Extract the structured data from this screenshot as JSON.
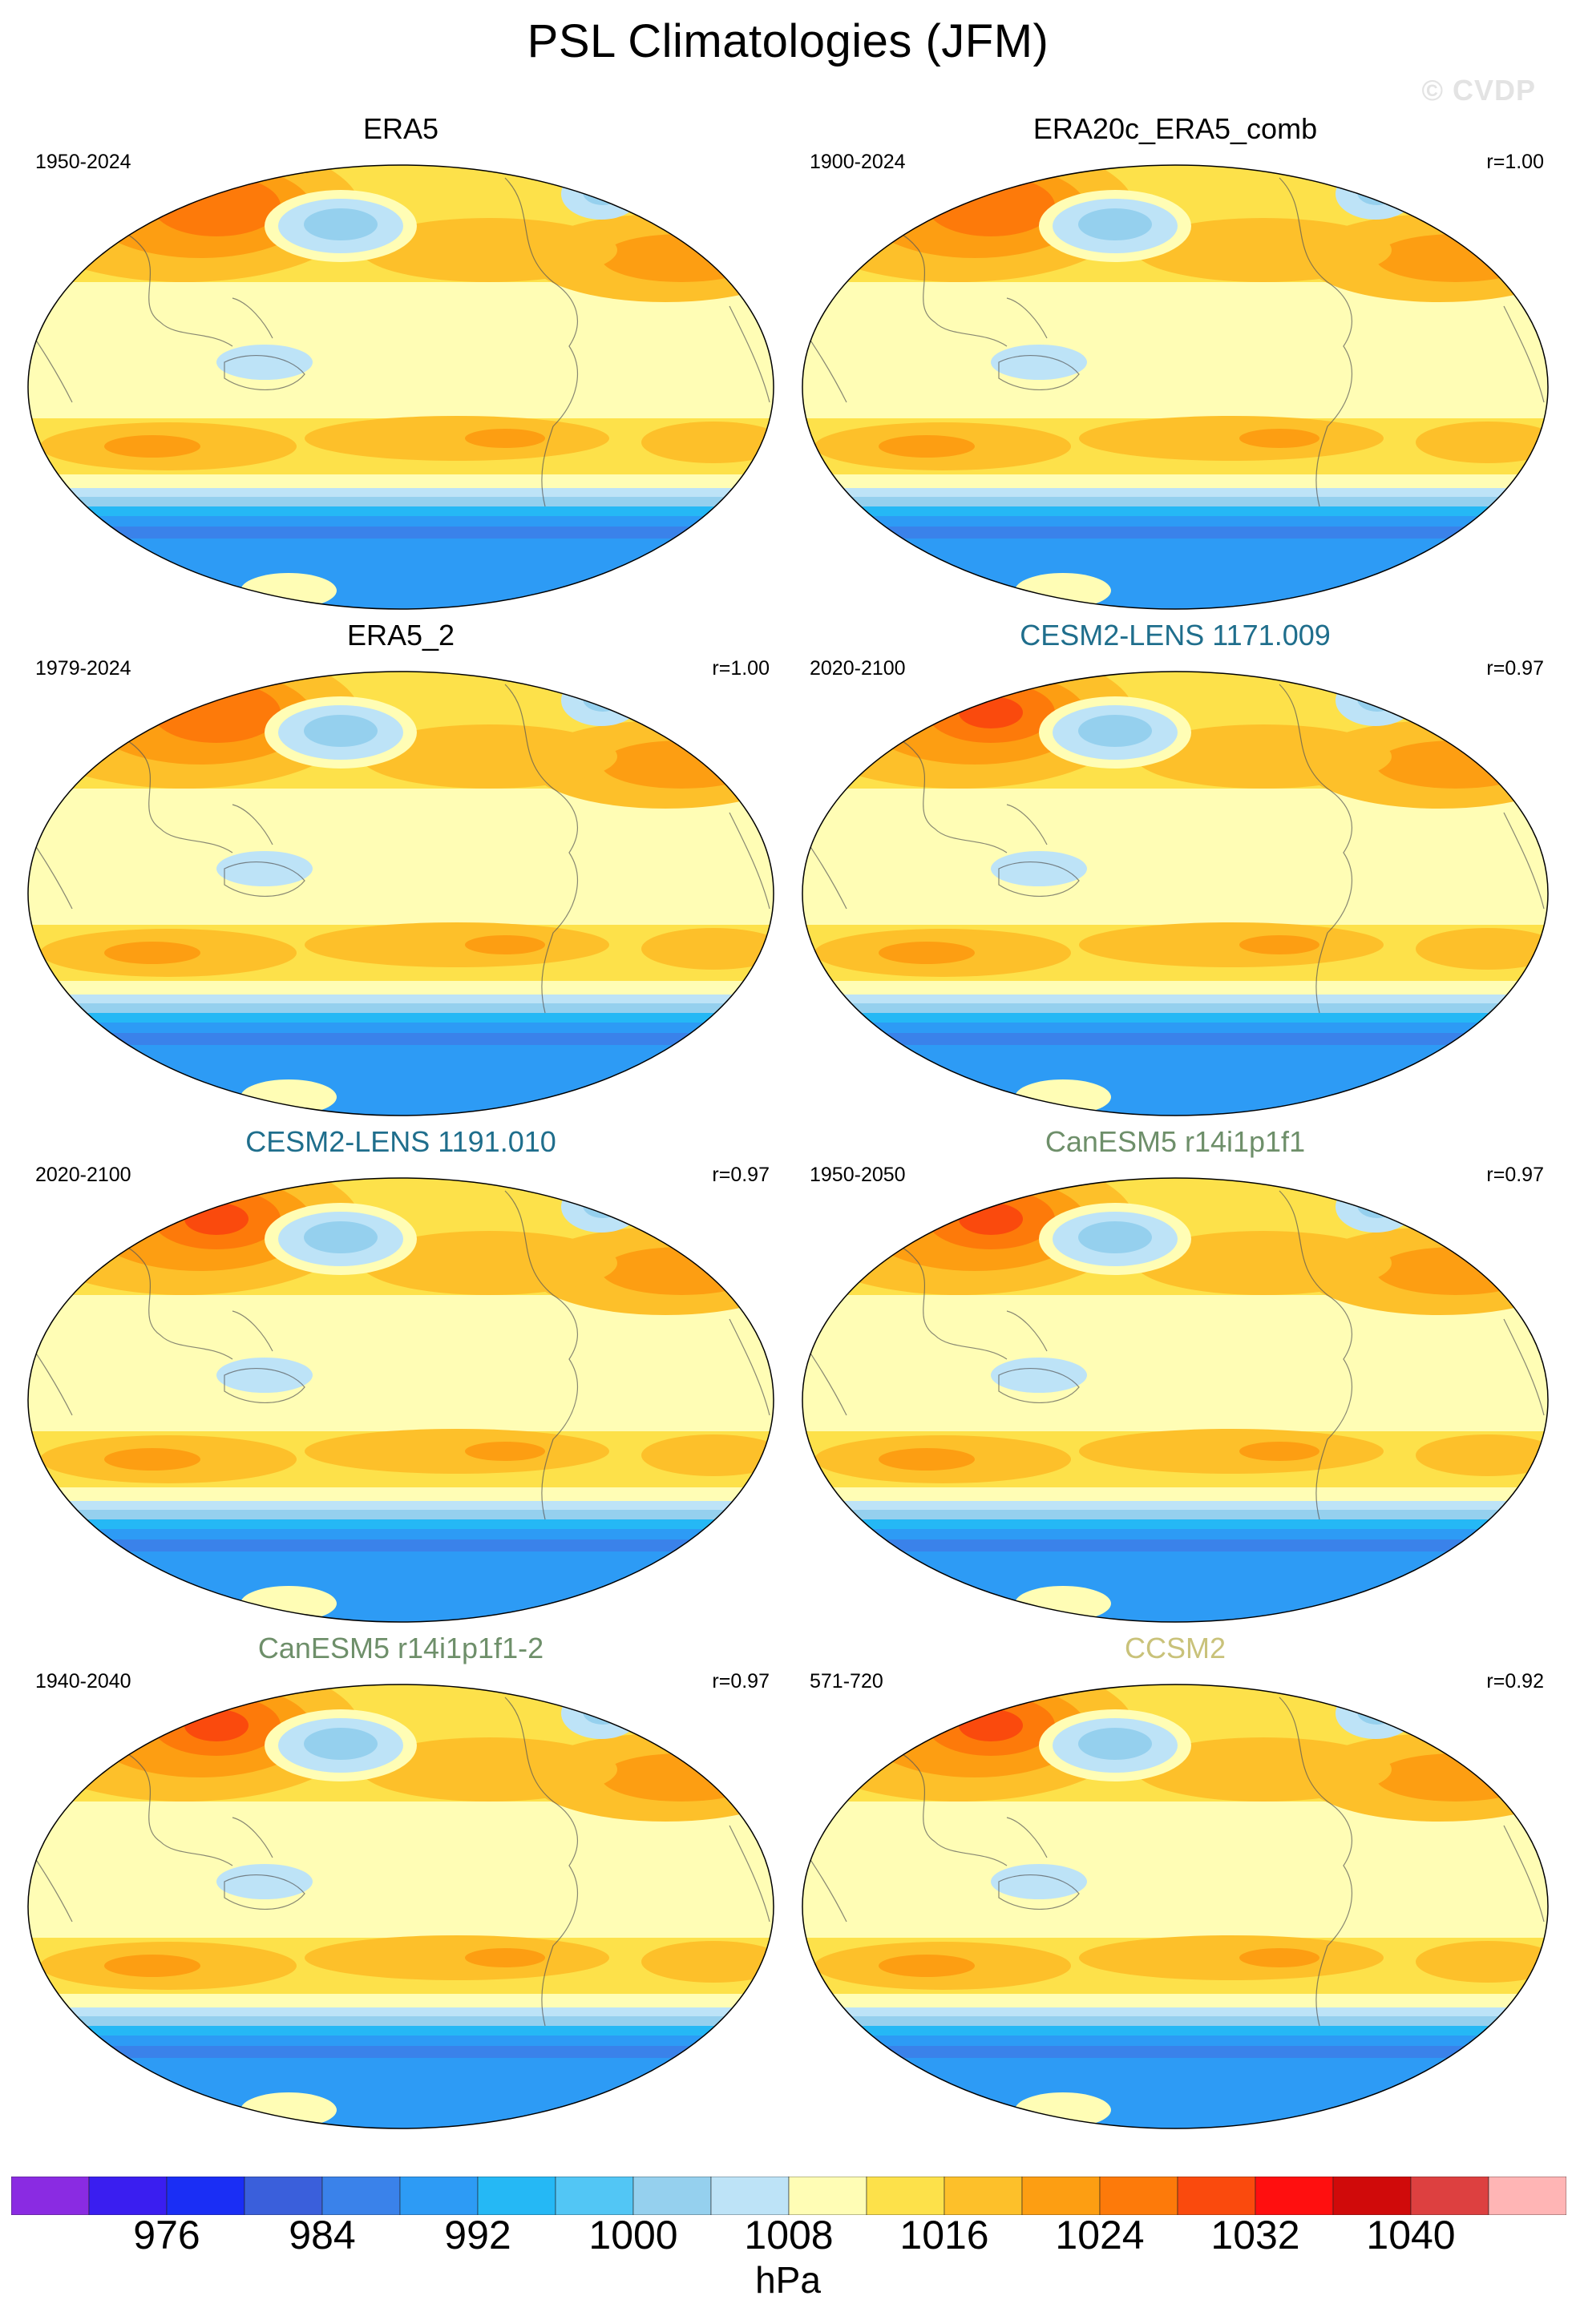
{
  "figure": {
    "title": "PSL Climatologies (JFM)",
    "watermark": "© CVDP"
  },
  "panels": [
    {
      "title": "ERA5",
      "period": "1950-2024",
      "r": "",
      "title_color": "#000000"
    },
    {
      "title": "ERA20c_ERA5_comb",
      "period": "1900-2024",
      "r": "r=1.00",
      "title_color": "#000000"
    },
    {
      "title": "ERA5_2",
      "period": "1979-2024",
      "r": "r=1.00",
      "title_color": "#000000"
    },
    {
      "title": "CESM2-LENS 1171.009",
      "period": "2020-2100",
      "r": "r=0.97",
      "title_color": "#1f6e8c"
    },
    {
      "title": "CESM2-LENS 1191.010",
      "period": "2020-2100",
      "r": "r=0.97",
      "title_color": "#1f6e8c"
    },
    {
      "title": "CanESM5 r14i1p1f1",
      "period": "1950-2050",
      "r": "r=0.97",
      "title_color": "#6e8f6a"
    },
    {
      "title": "CanESM5 r14i1p1f1-2",
      "period": "1940-2040",
      "r": "r=0.97",
      "title_color": "#6e8f6a"
    },
    {
      "title": "CCSM2",
      "period": "571-720",
      "r": "r=0.92",
      "title_color": "#c9c27a"
    }
  ],
  "colorbar": {
    "units": "hPa",
    "colors": [
      "#8a2be2",
      "#3a1ef0",
      "#1a2ef5",
      "#3a5fdb",
      "#3a82ea",
      "#2d9bf5",
      "#25b8f5",
      "#52c6f5",
      "#95d0ee",
      "#bde3f7",
      "#fffdb5",
      "#fde14a",
      "#fdc02a",
      "#fd9e12",
      "#fd7a0a",
      "#fa4a0d",
      "#ff0f0f",
      "#d00a0a",
      "#dd4040",
      "#ffb5b5"
    ],
    "tick_labels": [
      "976",
      "984",
      "992",
      "1000",
      "1008",
      "1016",
      "1024",
      "1032",
      "1040"
    ]
  }
}
